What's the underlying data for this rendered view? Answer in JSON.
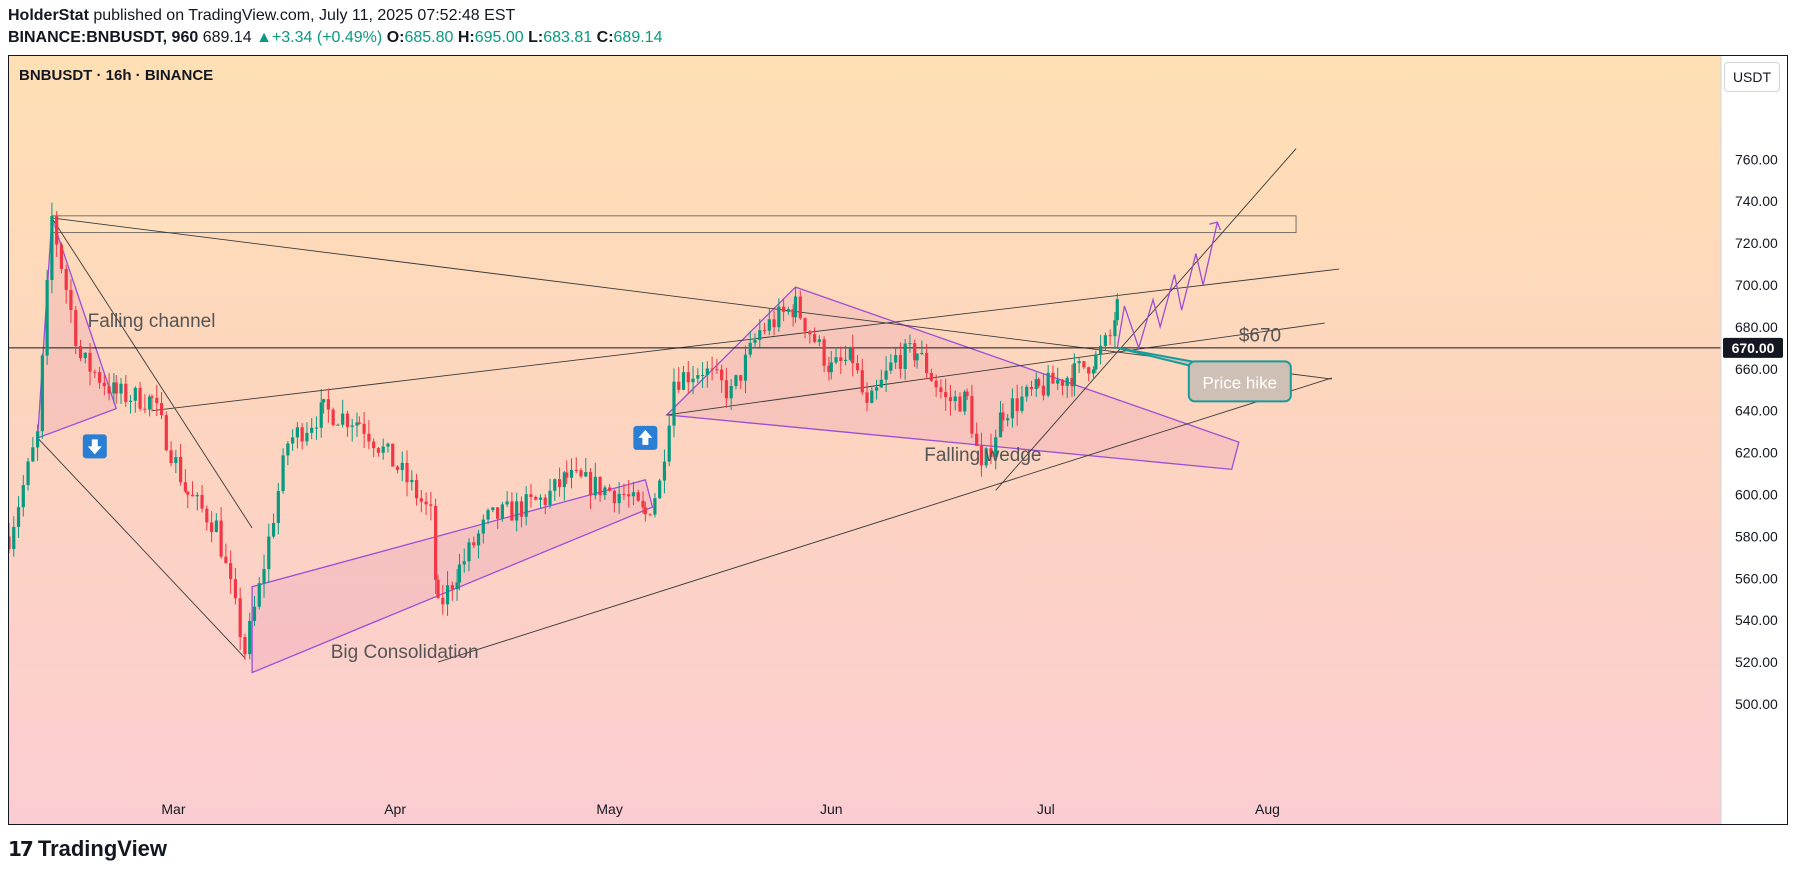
{
  "header": {
    "author": "HolderStat",
    "published_text": "published on TradingView.com, July 11, 2025 07:52:48 EST",
    "symbol_line": "BINANCE:BNBUSDT, 960",
    "last": "689.14",
    "change": "+3.34 (+0.49%)",
    "o_label": "O:",
    "o": "685.80",
    "h_label": "H:",
    "h": "695.00",
    "l_label": "L:",
    "l": "683.81",
    "c_label": "C:",
    "c": "689.14"
  },
  "chart": {
    "symbol_title": "BNBUSDT · 16h · BINANCE",
    "currency": "USDT",
    "price_marker": "670.00"
  },
  "footer": {
    "brand": "TradingView"
  },
  "colors": {
    "up": "#089981",
    "down": "#f23645",
    "pattern": "#9c4dd6",
    "callout": "#1a9b9b"
  },
  "chart_data": {
    "type": "candlestick",
    "y_ticks": [
      500,
      520,
      540,
      560,
      580,
      600,
      620,
      640,
      660,
      680,
      700,
      720,
      740,
      760
    ],
    "y_tick_labels": [
      "500.00",
      "520.00",
      "540.00",
      "560.00",
      "580.00",
      "600.00",
      "620.00",
      "640.00",
      "660.00",
      "680.00",
      "700.00",
      "720.00",
      "740.00",
      "760.00"
    ],
    "ylim": [
      488,
      776
    ],
    "x_labels": [
      {
        "label": "Mar",
        "date": "2025-03-01"
      },
      {
        "label": "Apr",
        "date": "2025-04-01"
      },
      {
        "label": "May",
        "date": "2025-05-01"
      },
      {
        "label": "Jun",
        "date": "2025-06-01"
      },
      {
        "label": "Jul",
        "date": "2025-07-01"
      },
      {
        "label": "Aug",
        "date": "2025-08-01"
      }
    ],
    "xlim": [
      "2025-02-06",
      "2025-08-18"
    ],
    "horizontal_level": 670,
    "resistance_zone": [
      725,
      733
    ],
    "anchors": [
      {
        "date": "2025-02-06",
        "price": 580
      },
      {
        "date": "2025-02-10",
        "price": 628
      },
      {
        "date": "2025-02-12",
        "price": 732
      },
      {
        "date": "2025-02-16",
        "price": 665
      },
      {
        "date": "2025-02-21",
        "price": 648
      },
      {
        "date": "2025-02-26",
        "price": 645
      },
      {
        "date": "2025-03-03",
        "price": 600
      },
      {
        "date": "2025-03-07",
        "price": 585
      },
      {
        "date": "2025-03-11",
        "price": 525
      },
      {
        "date": "2025-03-13",
        "price": 555
      },
      {
        "date": "2025-03-17",
        "price": 625
      },
      {
        "date": "2025-03-22",
        "price": 640
      },
      {
        "date": "2025-03-27",
        "price": 635
      },
      {
        "date": "2025-04-02",
        "price": 610
      },
      {
        "date": "2025-04-06",
        "price": 590
      },
      {
        "date": "2025-04-07",
        "price": 545
      },
      {
        "date": "2025-04-10",
        "price": 565
      },
      {
        "date": "2025-04-14",
        "price": 588
      },
      {
        "date": "2025-04-22",
        "price": 598
      },
      {
        "date": "2025-04-25",
        "price": 608
      },
      {
        "date": "2025-05-03",
        "price": 600
      },
      {
        "date": "2025-05-06",
        "price": 590
      },
      {
        "date": "2025-05-08",
        "price": 605
      },
      {
        "date": "2025-05-10",
        "price": 655
      },
      {
        "date": "2025-05-14",
        "price": 660
      },
      {
        "date": "2025-05-18",
        "price": 648
      },
      {
        "date": "2025-05-22",
        "price": 678
      },
      {
        "date": "2025-05-27",
        "price": 690
      },
      {
        "date": "2025-06-01",
        "price": 660
      },
      {
        "date": "2025-06-04",
        "price": 665
      },
      {
        "date": "2025-06-06",
        "price": 640
      },
      {
        "date": "2025-06-10",
        "price": 665
      },
      {
        "date": "2025-06-13",
        "price": 668
      },
      {
        "date": "2025-06-17",
        "price": 645
      },
      {
        "date": "2025-06-20",
        "price": 645
      },
      {
        "date": "2025-06-22",
        "price": 610
      },
      {
        "date": "2025-06-25",
        "price": 640
      },
      {
        "date": "2025-06-30",
        "price": 650
      },
      {
        "date": "2025-07-05",
        "price": 658
      },
      {
        "date": "2025-07-08",
        "price": 665
      },
      {
        "date": "2025-07-10",
        "price": 675
      },
      {
        "date": "2025-07-11",
        "price": 689
      }
    ],
    "projection": [
      {
        "date": "2025-07-11",
        "price": 670
      },
      {
        "date": "2025-07-12",
        "price": 690
      },
      {
        "date": "2025-07-14",
        "price": 670
      },
      {
        "date": "2025-07-16",
        "price": 693
      },
      {
        "date": "2025-07-17",
        "price": 680
      },
      {
        "date": "2025-07-19",
        "price": 705
      },
      {
        "date": "2025-07-20",
        "price": 688
      },
      {
        "date": "2025-07-22",
        "price": 715
      },
      {
        "date": "2025-07-23",
        "price": 700
      },
      {
        "date": "2025-07-25",
        "price": 730
      }
    ],
    "annotations": [
      {
        "text": "Falling channel",
        "date": "2025-02-17",
        "price": 680
      },
      {
        "text": "Big Consolidation",
        "date": "2025-03-23",
        "price": 522
      },
      {
        "text": "Falling wedge",
        "date": "2025-06-14",
        "price": 616
      },
      {
        "text": "$670",
        "date": "2025-07-28",
        "price": 673
      },
      {
        "text": "Price hike",
        "date": "2025-07-21",
        "price": 654
      }
    ],
    "grid": false
  }
}
